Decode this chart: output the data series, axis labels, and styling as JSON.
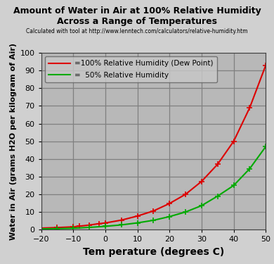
{
  "title_line1": "Amount of Water in Air at 100% Relative Humidity",
  "title_line2": "Across a Range of Temperatures",
  "subtitle": "Calculated with tool at http://www.lenntech.com/calculators/relative-humidity.htm",
  "xlabel": "Tem perature (degrees C)",
  "ylabel": "Water in Air (grams H2O per kilogram of Air)",
  "xlim": [
    -20,
    50
  ],
  "ylim": [
    0,
    100
  ],
  "xticks": [
    -20,
    -10,
    0,
    10,
    20,
    30,
    40,
    50
  ],
  "yticks": [
    0,
    10,
    20,
    30,
    40,
    50,
    60,
    70,
    80,
    90,
    100
  ],
  "fig_bg_color": "#d0d0d0",
  "plot_bg_color": "#b8b8b8",
  "grid_color": "#808080",
  "line1_color": "#dd0000",
  "line2_color": "#00aa00",
  "line1_label": "=100% Relative Humidity (Dew Point)",
  "line2_label": "=  50% Relative Humidity",
  "temps_100": [
    -20,
    -15,
    -10,
    -8,
    -5,
    -2,
    0,
    5,
    10,
    15,
    20,
    25,
    30,
    35,
    40,
    45,
    50
  ],
  "vals_100": [
    0.9,
    1.2,
    1.6,
    2.0,
    2.6,
    3.4,
    3.8,
    5.4,
    7.7,
    10.6,
    14.8,
    20.0,
    27.3,
    37.0,
    50.0,
    69.0,
    93.0
  ],
  "temps_50": [
    -20,
    -15,
    -10,
    -5,
    0,
    5,
    10,
    15,
    20,
    25,
    30,
    35,
    40,
    45,
    50
  ],
  "vals_50": [
    0.45,
    0.6,
    0.8,
    1.3,
    1.9,
    2.7,
    3.85,
    5.3,
    7.4,
    10.0,
    13.6,
    19.0,
    25.0,
    34.5,
    47.0
  ],
  "marker": "+",
  "marker_size": 6,
  "linewidth": 1.5,
  "title_fontsize": 9,
  "subtitle_fontsize": 5.5,
  "xlabel_fontsize": 10,
  "ylabel_fontsize": 8,
  "tick_fontsize": 8,
  "legend_fontsize": 7.5
}
